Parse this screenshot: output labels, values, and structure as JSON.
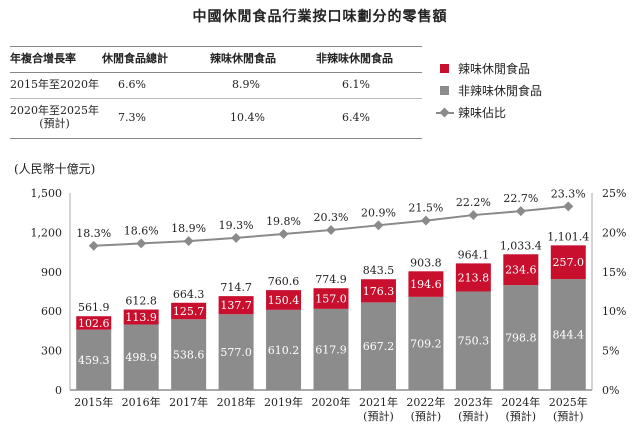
{
  "title": "中國休閒食品行業按口味劃分的零售額",
  "table": {
    "headers": [
      "年複合增長率",
      "休閒食品總計",
      "辣味休閒食品",
      "非辣味休閒食品"
    ],
    "rows": [
      {
        "period": "2015年至2020年",
        "total": "6.6%",
        "spicy": "8.9%",
        "nonspicy": "6.1%"
      },
      {
        "period_line1": "2020年至2025年",
        "period_line2": "(預計)",
        "total": "7.3%",
        "spicy": "10.4%",
        "nonspicy": "6.4%"
      }
    ]
  },
  "legend": {
    "spicy": "辣味休閒食品",
    "nonspicy": "非辣味休閒食品",
    "share": "辣味佔比"
  },
  "colors": {
    "spicy": "#c8102e",
    "nonspicy": "#8c8c8c",
    "line": "#8a8a8a"
  },
  "chart_data": {
    "type": "bar",
    "stacked": true,
    "ylabel": "(人民幣十億元)",
    "categories": [
      {
        "line1": "2015年",
        "line2": ""
      },
      {
        "line1": "2016年",
        "line2": ""
      },
      {
        "line1": "2017年",
        "line2": ""
      },
      {
        "line1": "2018年",
        "line2": ""
      },
      {
        "line1": "2019年",
        "line2": ""
      },
      {
        "line1": "2020年",
        "line2": ""
      },
      {
        "line1": "2021年",
        "line2": "(預計)"
      },
      {
        "line1": "2022年",
        "line2": "(預計)"
      },
      {
        "line1": "2023年",
        "line2": "(預計)"
      },
      {
        "line1": "2024年",
        "line2": "(預計)"
      },
      {
        "line1": "2025年",
        "line2": "(預計)"
      }
    ],
    "series": [
      {
        "name": "非辣味休閒食品",
        "values": [
          459.3,
          498.9,
          538.6,
          577.0,
          610.2,
          617.9,
          667.2,
          709.2,
          750.3,
          798.8,
          844.4
        ]
      },
      {
        "name": "辣味休閒食品",
        "values": [
          102.6,
          113.9,
          125.7,
          137.7,
          150.4,
          157.0,
          176.3,
          194.6,
          213.8,
          234.6,
          257.0
        ]
      }
    ],
    "bar_labels": {
      "nonspicy": [
        "459.3",
        "498.9",
        "538.6",
        "577.0",
        "610.2",
        "617.9",
        "667.2",
        "709.2",
        "750.3",
        "798.8",
        "844.4"
      ],
      "spicy": [
        "102.6",
        "113.9",
        "125.7",
        "137.7",
        "150.4",
        "157.0",
        "176.3",
        "194.6",
        "213.8",
        "234.6",
        "257.0"
      ]
    },
    "totals": [
      561.9,
      612.8,
      664.3,
      714.7,
      760.6,
      774.9,
      843.5,
      903.8,
      964.1,
      1033.4,
      1101.4
    ],
    "total_labels": [
      "561.9",
      "612.8",
      "664.3",
      "714.7",
      "760.6",
      "774.9",
      "843.5",
      "903.8",
      "964.1",
      "1,033.4",
      "1,101.4"
    ],
    "line": {
      "name": "辣味佔比",
      "values": [
        18.3,
        18.6,
        18.9,
        19.3,
        19.8,
        20.3,
        20.9,
        21.5,
        22.2,
        22.7,
        23.3
      ]
    },
    "line_labels": [
      "18.3%",
      "18.6%",
      "18.9%",
      "19.3%",
      "19.8%",
      "20.3%",
      "20.9%",
      "21.5%",
      "22.2%",
      "22.7%",
      "23.3%"
    ],
    "ylim": [
      0,
      1500
    ],
    "yticks": [
      "0",
      "300",
      "600",
      "900",
      "1,200",
      "1,500"
    ],
    "ylim2": [
      0,
      25
    ],
    "yticks2": [
      "0%",
      "5%",
      "10%",
      "15%",
      "20%",
      "25%"
    ],
    "grid": false,
    "legend_position": "top-right"
  }
}
